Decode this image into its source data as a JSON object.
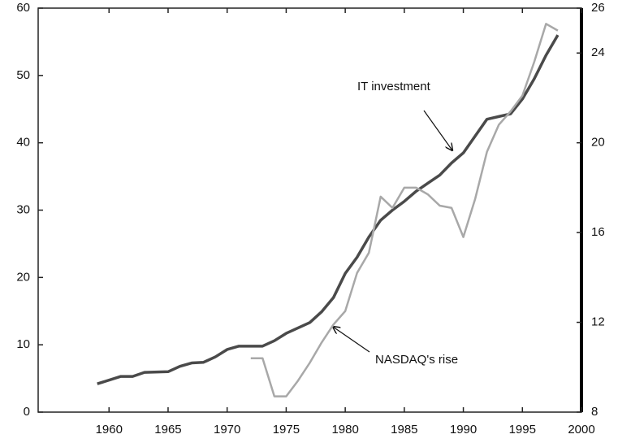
{
  "chart_data": {
    "type": "line",
    "annotations": [
      "IT investment",
      "NASDAQ's rise"
    ],
    "xlim": [
      1954,
      2000
    ],
    "xticks": [
      1960,
      1965,
      1970,
      1975,
      1980,
      1985,
      1990,
      1995,
      2000
    ],
    "ylim": [
      0,
      60
    ],
    "yticks": [
      0,
      10,
      20,
      30,
      40,
      50,
      60
    ],
    "y2lim": [
      8,
      26
    ],
    "y2ticks": [
      8,
      12,
      16,
      20,
      24,
      26
    ],
    "series": [
      {
        "color": "#4a4a4a",
        "axis": "y",
        "x": [
          1959,
          1961,
          1962,
          1963,
          1965,
          1966,
          1967,
          1968,
          1969,
          1970,
          1971,
          1972,
          1973,
          1974,
          1975,
          1976,
          1977,
          1978,
          1979,
          1980,
          1981,
          1982,
          1983,
          1984,
          1985,
          1986,
          1987,
          1988,
          1989,
          1990,
          1991,
          1992,
          1993,
          1994,
          1995,
          1996,
          1997,
          1998
        ],
        "values": [
          4.2,
          5.3,
          5.3,
          5.9,
          6,
          6.8,
          7.3,
          7.4,
          8.2,
          9.3,
          9.8,
          9.8,
          9.8,
          10.6,
          11.7,
          12.5,
          13.3,
          14.9,
          17,
          20.6,
          23,
          26,
          28.5,
          30,
          31.3,
          32.8,
          34,
          35.2,
          37,
          38.5,
          41,
          43.5,
          43.9,
          44.3,
          46.5,
          49.5,
          53,
          56
        ]
      },
      {
        "color": "#a8a8a8",
        "axis": "y2",
        "x": [
          1972,
          1973,
          1974,
          1975,
          1976,
          1977,
          1978,
          1979,
          1980,
          1981,
          1982,
          1983,
          1984,
          1985,
          1986,
          1987,
          1988,
          1989,
          1990,
          1991,
          1992,
          1993,
          1994,
          1995,
          1996,
          1997,
          1998
        ],
        "values": [
          10.4,
          10.4,
          8.7,
          8.7,
          9.4,
          10.2,
          11.1,
          11.9,
          12.5,
          14.2,
          15.1,
          17.6,
          17.1,
          18,
          18,
          17.7,
          17.2,
          17.1,
          15.8,
          17.5,
          19.6,
          20.8,
          21.4,
          22.1,
          23.6,
          25.3,
          25
        ]
      }
    ]
  }
}
